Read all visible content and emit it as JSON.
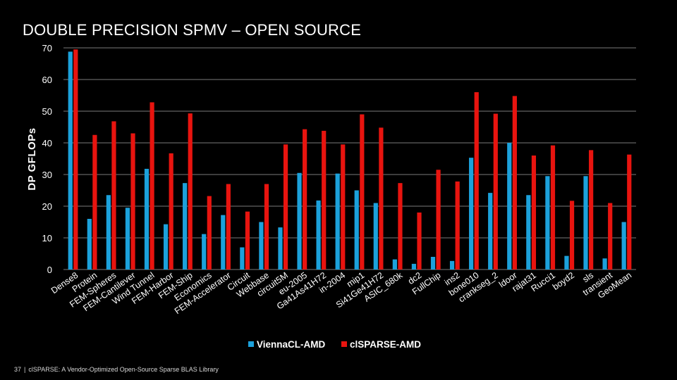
{
  "slide": {
    "title": "DOUBLE PRECISION SPMV – OPEN SOURCE",
    "page_number": "37",
    "footer_separator": "|",
    "footer_text": "clSPARSE: A Vendor-Optimized Open-Source Sparse BLAS Library"
  },
  "chart_data": {
    "type": "bar",
    "title": "",
    "xlabel": "",
    "ylabel": "DP GFLOPs",
    "ylim": [
      0,
      70
    ],
    "yticks": [
      0,
      10,
      20,
      30,
      40,
      50,
      60,
      70
    ],
    "grid": true,
    "legend_position": "bottom",
    "colors": {
      "ViennaCL-AMD": "#1ca1db",
      "clSPARSE-AMD": "#e8140f",
      "grid": "#7a7a7a",
      "text": "#ffffff"
    },
    "categories": [
      "Dense8",
      "Protein",
      "FEM-Spheres",
      "FEM-Cantilever",
      "Wind Tunnel",
      "FEM-Harbor",
      "FEM-Ship",
      "Economics",
      "FEM-Accelerator",
      "Circuit",
      "Webbase",
      "circuit5M",
      "eu-2005",
      "Ga41As41H72",
      "in-2004",
      "mip1",
      "Si41Ge41H72",
      "ASIC_680k",
      "dc2",
      "FullChip",
      "ins2",
      "bone010",
      "crankseg_2",
      "ldoor",
      "rajat31",
      "Rucci1",
      "boyd2",
      "sls",
      "transient",
      "GeoMean"
    ],
    "series": [
      {
        "name": "ViennaCL-AMD",
        "values": [
          68.8,
          16.0,
          23.5,
          19.5,
          31.8,
          14.3,
          27.3,
          11.2,
          17.2,
          7.0,
          15.0,
          13.3,
          30.5,
          21.8,
          30.3,
          25.0,
          21.0,
          3.2,
          1.8,
          4.0,
          2.7,
          35.3,
          24.2,
          40.0,
          23.5,
          29.5,
          4.3,
          29.5,
          3.5,
          15.0
        ]
      },
      {
        "name": "clSPARSE-AMD",
        "values": [
          69.5,
          42.5,
          46.8,
          43.0,
          52.8,
          36.7,
          49.3,
          23.2,
          27.0,
          18.3,
          27.0,
          39.5,
          44.3,
          43.8,
          39.5,
          49.0,
          44.8,
          27.3,
          18.0,
          31.5,
          27.8,
          56.0,
          49.2,
          54.8,
          36.0,
          39.2,
          21.7,
          37.7,
          21.0,
          36.3
        ]
      }
    ]
  }
}
